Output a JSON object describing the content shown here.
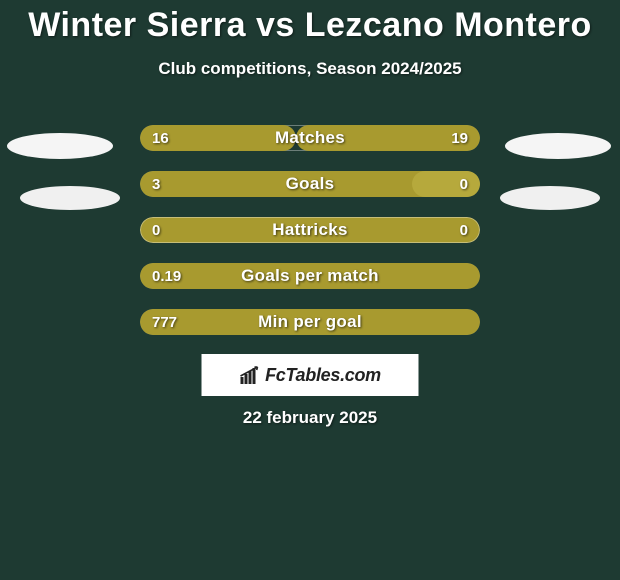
{
  "background_color": "#1e3a32",
  "title": "Winter Sierra vs Lezcano Montero",
  "title_fontsize": 34,
  "title_color": "#ffffff",
  "subtitle": "Club competitions, Season 2024/2025",
  "subtitle_fontsize": 17,
  "bar_colors": {
    "fill": "#a89a2f",
    "empty": "#1e3a32",
    "border": "rgba(255,255,255,0.35)"
  },
  "badges": {
    "left": {
      "shape": "ellipse",
      "color": "#f5f5f5"
    },
    "right": {
      "shape": "ellipse",
      "color": "#f5f5f5"
    },
    "left2": {
      "shape": "ellipse",
      "color": "#f0f0f0"
    },
    "right2": {
      "shape": "ellipse",
      "color": "#f0f0f0"
    }
  },
  "rows": [
    {
      "label": "Matches",
      "left": "16",
      "right": "19",
      "left_pct": 46,
      "right_pct": 54,
      "show_right_fill": true
    },
    {
      "label": "Goals",
      "left": "3",
      "right": "0",
      "left_pct": 100,
      "right_pct": 20,
      "show_right_fill": true,
      "right_fill_alt": true
    },
    {
      "label": "Hattricks",
      "left": "0",
      "right": "0",
      "left_pct": 0,
      "right_pct": 0,
      "show_right_fill": false
    },
    {
      "label": "Goals per match",
      "left": "0.19",
      "right": "",
      "left_pct": 100,
      "right_pct": 0,
      "show_right_fill": false
    },
    {
      "label": "Min per goal",
      "left": "777",
      "right": "",
      "left_pct": 100,
      "right_pct": 0,
      "show_right_fill": false
    }
  ],
  "brand": {
    "text": "FcTables.com",
    "icon": "bar-chart-with-arrow"
  },
  "date": "22 february 2025"
}
